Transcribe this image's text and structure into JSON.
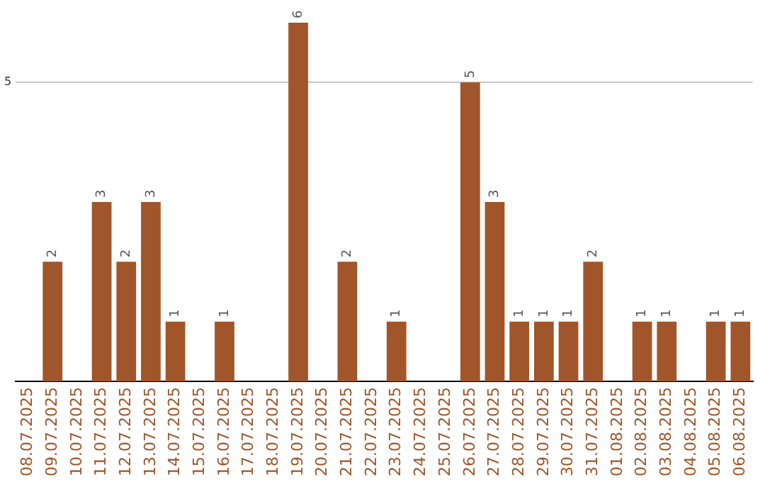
{
  "chart_data": {
    "type": "bar",
    "categories": [
      "08.07.2025",
      "09.07.2025",
      "10.07.2025",
      "11.07.2025",
      "12.07.2025",
      "13.07.2025",
      "14.07.2025",
      "15.07.2025",
      "16.07.2025",
      "17.07.2025",
      "18.07.2025",
      "19.07.2025",
      "20.07.2025",
      "21.07.2025",
      "22.07.2025",
      "23.07.2025",
      "24.07.2025",
      "25.07.2025",
      "26.07.2025",
      "27.07.2025",
      "28.07.2025",
      "29.07.2025",
      "30.07.2025",
      "31.07.2025",
      "01.08.2025",
      "02.08.2025",
      "03.08.2025",
      "04.08.2025",
      "05.08.2025",
      "06.08.2025"
    ],
    "values": [
      0,
      2,
      0,
      3,
      2,
      3,
      1,
      0,
      1,
      0,
      0,
      6,
      0,
      2,
      0,
      1,
      0,
      0,
      5,
      3,
      1,
      1,
      1,
      2,
      0,
      1,
      1,
      0,
      1,
      1
    ],
    "value_labels": [
      null,
      "2",
      null,
      "3",
      "2",
      "3",
      "1",
      null,
      "1",
      null,
      null,
      "6",
      null,
      "2",
      null,
      "1",
      null,
      null,
      "5",
      "3",
      "1",
      "1",
      "1",
      "2",
      null,
      "1",
      "1",
      null,
      "1",
      "1"
    ],
    "color": "#a0562a",
    "ylim": [
      0,
      6
    ],
    "yticks": [
      5
    ],
    "grid": "y",
    "legend": false
  }
}
